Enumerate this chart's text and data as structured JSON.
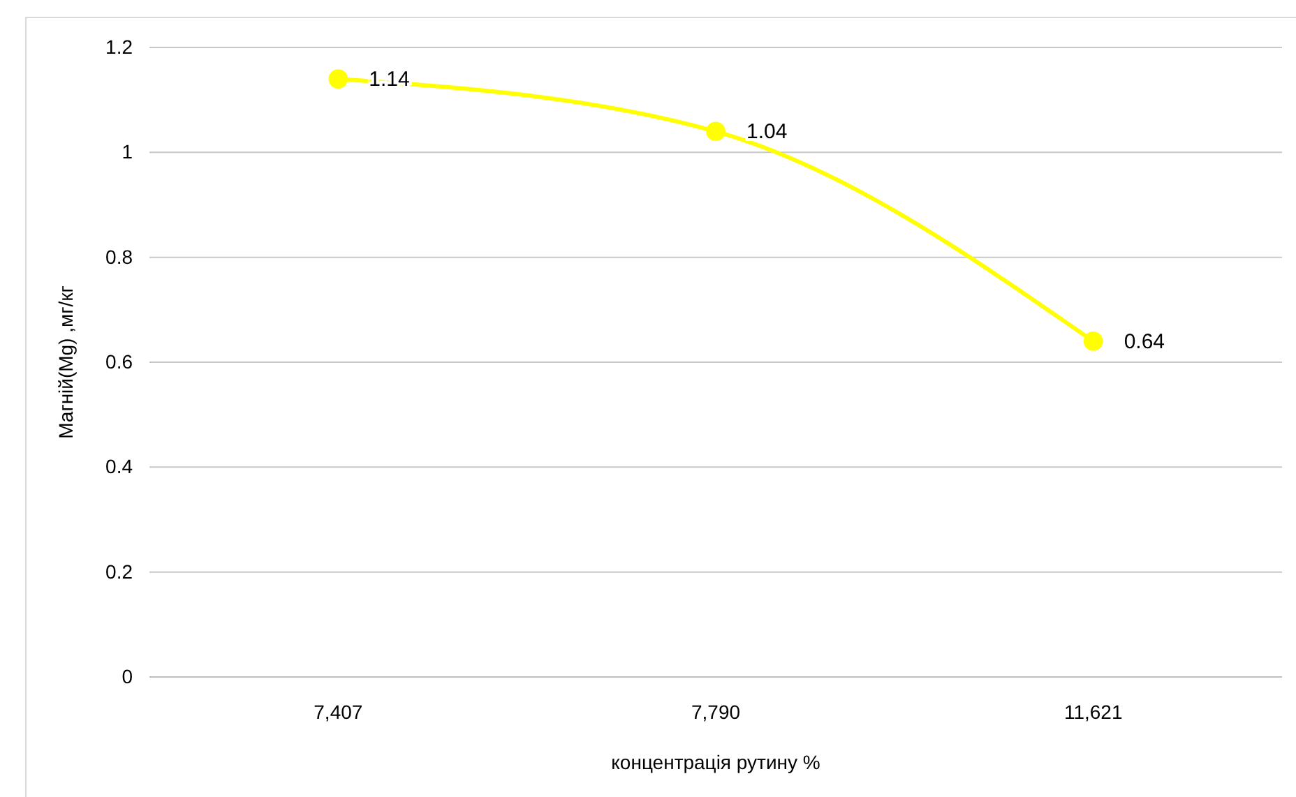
{
  "chart_data": {
    "type": "line",
    "xlabel": "концентрація рутину %",
    "ylabel": "Магній(Mg) ,мг/кг",
    "categories": [
      "7,407",
      "7,790",
      "11,621"
    ],
    "series": [
      {
        "color": "#ffff00",
        "values": [
          1.14,
          1.04,
          0.64
        ]
      }
    ],
    "ylim": [
      0,
      1.2
    ],
    "yticks": [
      0,
      0.2,
      0.4,
      0.6,
      0.8,
      1,
      1.2
    ],
    "grid": "y",
    "marker": "circle",
    "line_style": "solid",
    "data_labels": true
  }
}
